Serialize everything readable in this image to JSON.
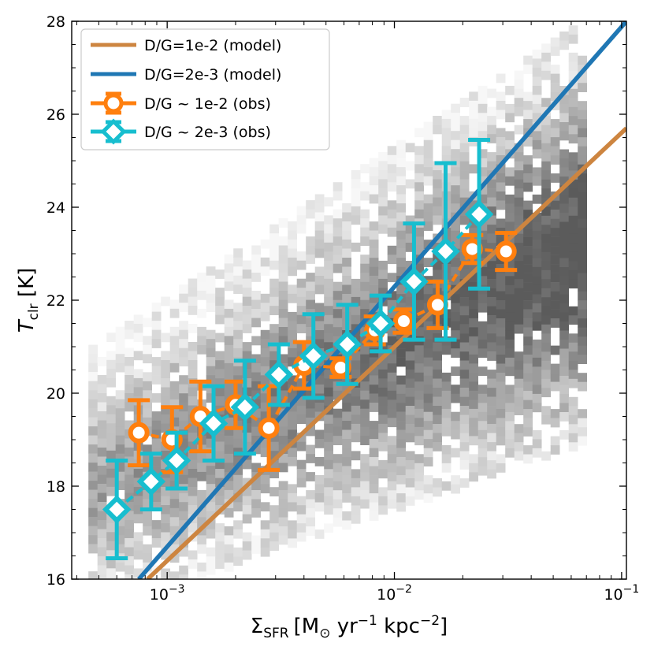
{
  "chart_data": {
    "type": "scatter",
    "title": "",
    "xlabel": {
      "main": "Σ",
      "sub": "SFR",
      "unit_parts": [
        "[M",
        "⊙",
        " yr",
        "−1",
        " kpc",
        "−2",
        "]"
      ]
    },
    "ylabel": {
      "main": "T",
      "sub": "clr",
      "unit": " [K]"
    },
    "xscale": "log",
    "xlim": [
      0.00038,
      0.105
    ],
    "ylim": [
      16,
      28
    ],
    "x_ticks": [
      {
        "value": 0.001,
        "base": "10",
        "exp": "−3"
      },
      {
        "value": 0.01,
        "base": "10",
        "exp": "−2"
      },
      {
        "value": 0.1,
        "base": "10",
        "exp": "−1"
      }
    ],
    "y_ticks": [
      16,
      18,
      20,
      22,
      24,
      26,
      28
    ],
    "grid": false,
    "legend_position": "top-left",
    "colors": {
      "model_high": "#cd8540",
      "model_low": "#1f77b4",
      "obs_high": "#ff7f0e",
      "obs_low": "#17becf"
    },
    "series": [
      {
        "name": "D/G=1e-2 (model)",
        "kind": "line",
        "color": "#cd8540",
        "x": [
          0.00082,
          0.105
        ],
        "y": [
          16.0,
          25.7
        ]
      },
      {
        "name": "D/G=2e-3 (model)",
        "kind": "line",
        "color": "#1f77b4",
        "x": [
          0.00075,
          0.105
        ],
        "y": [
          16.0,
          28.0
        ]
      },
      {
        "name": "D/G ~ 1e-2 (obs)",
        "kind": "errorbar",
        "marker": "circle",
        "color": "#ff7f0e",
        "x": [
          0.00075,
          0.00105,
          0.0014,
          0.002,
          0.0028,
          0.004,
          0.0058,
          0.0082,
          0.011,
          0.0155,
          0.022,
          0.031
        ],
        "y": [
          19.15,
          19.0,
          19.5,
          19.75,
          19.25,
          20.6,
          20.55,
          21.35,
          21.55,
          21.9,
          23.1,
          23.05
        ],
        "yerr": [
          0.7,
          0.7,
          0.75,
          0.5,
          0.9,
          0.5,
          0.2,
          0.3,
          0.25,
          0.5,
          0.3,
          0.4
        ]
      },
      {
        "name": "D/G ~ 2e-3 (obs)",
        "kind": "errorbar",
        "marker": "diamond",
        "color": "#17becf",
        "x": [
          0.0006,
          0.00085,
          0.0011,
          0.0016,
          0.0022,
          0.0031,
          0.0044,
          0.0062,
          0.0087,
          0.0122,
          0.0168,
          0.0236
        ],
        "y": [
          17.5,
          18.1,
          18.55,
          19.35,
          19.7,
          20.4,
          20.8,
          21.05,
          21.5,
          22.4,
          23.05,
          23.85
        ],
        "yerr": [
          1.05,
          0.6,
          0.6,
          0.8,
          1.0,
          0.65,
          0.9,
          0.85,
          0.6,
          1.25,
          1.9,
          1.6
        ]
      }
    ],
    "density_background": {
      "description_color": "gray",
      "band_center": {
        "x": [
          0.00045,
          0.07
        ],
        "y": [
          18.0,
          23.3
        ]
      },
      "band_width_y": 1.9
    },
    "legend_entries": [
      {
        "text": "D/G=1e-2 (model)",
        "series": 0
      },
      {
        "text": "D/G=2e-3 (model)",
        "series": 1
      },
      {
        "text": "D/G ~ 1e-2 (obs)",
        "series": 2
      },
      {
        "text": "D/G ~ 2e-3 (obs)",
        "series": 3
      }
    ]
  }
}
